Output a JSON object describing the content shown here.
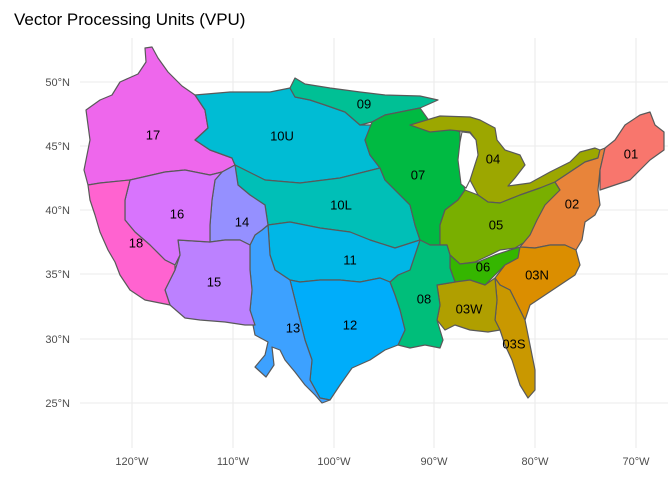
{
  "title": "Vector Processing Units (VPU)",
  "x_axis": {
    "ticks": [
      "120°W",
      "110°W",
      "100°W",
      "90°W",
      "80°W",
      "70°W"
    ]
  },
  "y_axis": {
    "ticks": [
      "50°N",
      "45°N",
      "40°N",
      "35°N",
      "30°N",
      "25°N"
    ]
  },
  "regions": [
    {
      "id": "01",
      "label": "01",
      "color": "#F8766D"
    },
    {
      "id": "02",
      "label": "02",
      "color": "#E8843A"
    },
    {
      "id": "03N",
      "label": "03N",
      "color": "#DB8E00"
    },
    {
      "id": "03S",
      "label": "03S",
      "color": "#C99800"
    },
    {
      "id": "03W",
      "label": "03W",
      "color": "#B09F00"
    },
    {
      "id": "04",
      "label": "04",
      "color": "#9CA700"
    },
    {
      "id": "05",
      "label": "05",
      "color": "#79AF00"
    },
    {
      "id": "06",
      "label": "06",
      "color": "#35B600"
    },
    {
      "id": "07",
      "label": "07",
      "color": "#00BA42"
    },
    {
      "id": "08",
      "label": "08",
      "color": "#00BE7A"
    },
    {
      "id": "09",
      "label": "09",
      "color": "#00C095"
    },
    {
      "id": "10L",
      "label": "10L",
      "color": "#00BFB7"
    },
    {
      "id": "10U",
      "label": "10U",
      "color": "#00BCD4"
    },
    {
      "id": "11",
      "label": "11",
      "color": "#00B7E6"
    },
    {
      "id": "12",
      "label": "12",
      "color": "#00ADFA"
    },
    {
      "id": "13",
      "label": "13",
      "color": "#3DA1FF"
    },
    {
      "id": "14",
      "label": "14",
      "color": "#9590FF"
    },
    {
      "id": "15",
      "label": "15",
      "color": "#BC81FF"
    },
    {
      "id": "16",
      "label": "16",
      "color": "#D874FD"
    },
    {
      "id": "17",
      "label": "17",
      "color": "#EE67EC"
    },
    {
      "id": "18",
      "label": "18",
      "color": "#FF63D0"
    }
  ]
}
